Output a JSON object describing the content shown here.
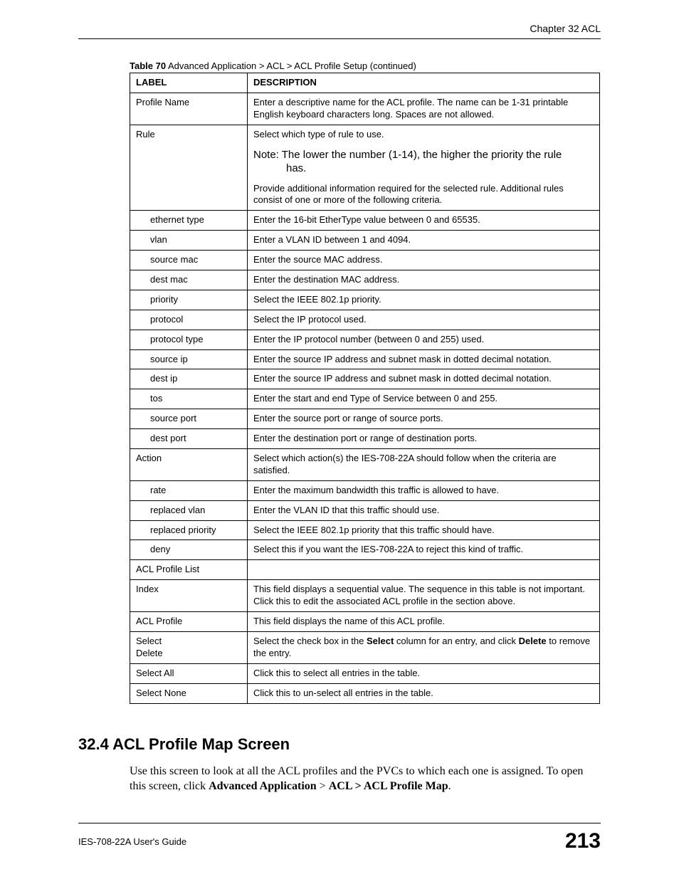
{
  "header": {
    "chapter": "Chapter 32 ACL"
  },
  "table_caption": {
    "label": "Table 70",
    "text": "Advanced Application > ACL > ACL Profile Setup (continued)"
  },
  "columns": {
    "label": "LABEL",
    "description": "DESCRIPTION"
  },
  "rows": [
    {
      "label": "Profile Name",
      "indent": false,
      "desc": "Enter a descriptive name for the ACL profile. The name can be 1-31 printable English keyboard characters long. Spaces are not allowed."
    },
    {
      "label": "Rule",
      "indent": false,
      "special": "rule"
    },
    {
      "label": "ethernet type",
      "indent": true,
      "desc": "Enter the 16-bit EtherType value between 0 and 65535."
    },
    {
      "label": "vlan",
      "indent": true,
      "desc": "Enter a VLAN ID between 1 and 4094."
    },
    {
      "label": "source mac",
      "indent": true,
      "desc": "Enter the source MAC address."
    },
    {
      "label": "dest mac",
      "indent": true,
      "desc": "Enter the destination MAC address."
    },
    {
      "label": "priority",
      "indent": true,
      "desc": "Select the IEEE 802.1p priority."
    },
    {
      "label": "protocol",
      "indent": true,
      "desc": "Select the IP protocol used."
    },
    {
      "label": "protocol type",
      "indent": true,
      "desc": "Enter the IP protocol number (between 0 and 255) used."
    },
    {
      "label": "source ip",
      "indent": true,
      "desc": "Enter the source IP address and subnet mask in dotted decimal notation."
    },
    {
      "label": "dest ip",
      "indent": true,
      "desc": "Enter the source IP address and subnet mask in dotted decimal notation."
    },
    {
      "label": "tos",
      "indent": true,
      "desc": "Enter the start and end Type of Service between 0 and 255."
    },
    {
      "label": "source port",
      "indent": true,
      "desc": "Enter the source port or range of source ports."
    },
    {
      "label": "dest port",
      "indent": true,
      "desc": "Enter the destination port or range of destination ports."
    },
    {
      "label": "Action",
      "indent": false,
      "desc": "Select which action(s) the IES-708-22A should follow when the criteria are satisfied."
    },
    {
      "label": "rate",
      "indent": true,
      "desc": "Enter the maximum bandwidth this traffic is allowed to have."
    },
    {
      "label": "replaced vlan",
      "indent": true,
      "desc": "Enter the VLAN ID that this traffic should use."
    },
    {
      "label": "replaced priority",
      "indent": true,
      "desc": "Select the IEEE 802.1p priority that this traffic should have."
    },
    {
      "label": "deny",
      "indent": true,
      "desc": "Select this if you want the IES-708-22A to reject this kind of traffic."
    },
    {
      "label": "ACL Profile List",
      "indent": false,
      "desc": ""
    },
    {
      "label": "Index",
      "indent": false,
      "desc": "This field displays a sequential value. The sequence in this table is not important. Click this to edit the associated ACL profile in the section above."
    },
    {
      "label": "ACL Profile",
      "indent": false,
      "desc": "This field displays the name of this ACL profile."
    },
    {
      "label": "Select\nDelete",
      "indent": false,
      "special": "select_delete"
    },
    {
      "label": "Select All",
      "indent": false,
      "desc": "Click this to select all entries in the table."
    },
    {
      "label": "Select None",
      "indent": false,
      "desc": "Click this to un-select all entries in the table."
    }
  ],
  "rule_cell": {
    "line1": "Select which type of rule to use.",
    "note_first": "Note: The lower the number (1-14), the higher the priority the rule",
    "note_second": "has.",
    "line3": "Provide additional information required for the selected rule. Additional rules consist of one or more of the following criteria."
  },
  "select_delete_cell": {
    "pre": "Select the check box in the ",
    "bold1": "Select",
    "mid": " column for an entry, and click ",
    "bold2": "Delete",
    "post": " to remove the entry."
  },
  "section": {
    "heading": "32.4  ACL Profile Map Screen"
  },
  "paragraph": {
    "pre": "Use this screen to look at all the ACL profiles and the PVCs to which each one is assigned. To open this screen, click ",
    "b1": "Advanced Application",
    "mid1": " > ",
    "b2": "ACL > ACL Profile Map",
    "post": "."
  },
  "footer": {
    "guide": "IES-708-22A User's Guide",
    "page": "213"
  }
}
